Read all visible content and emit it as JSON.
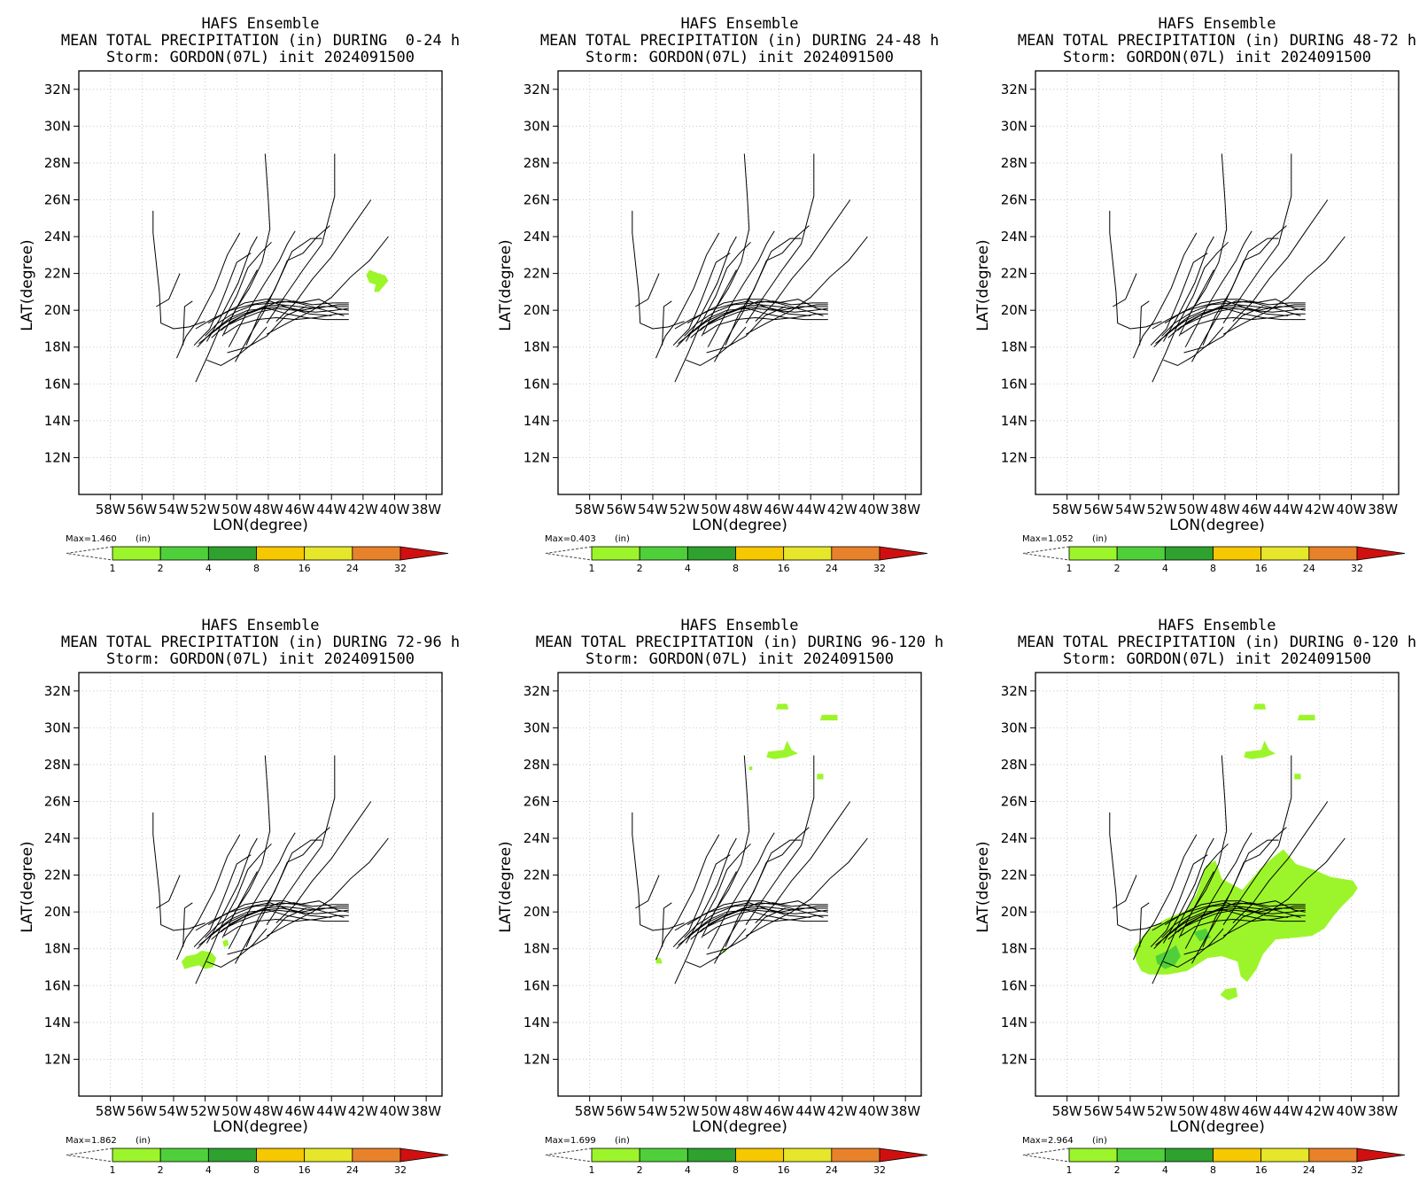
{
  "figure": {
    "colorbar": {
      "unit_label": "(in)",
      "levels": [
        "1",
        "2",
        "4",
        "8",
        "16",
        "24",
        "32"
      ],
      "colors": [
        "#9cf52a",
        "#4fd03a",
        "#2ea12e",
        "#1d7a1d",
        "#f5c800",
        "#e6e62a",
        "#e8822a",
        "#d01010"
      ]
    }
  },
  "chart_data": [
    {
      "type": "line",
      "title": "HAFS Ensemble",
      "subtitle": "MEAN TOTAL PRECIPITATION (in) DURING  0-24 h",
      "subtitle2": "Storm: GORDON(07L) init 2024091500",
      "xlabel": "LON(degree)",
      "ylabel": "LAT(degree)",
      "xlim": [
        -60,
        -37
      ],
      "ylim": [
        10,
        33
      ],
      "xticks": [
        -58,
        -56,
        -54,
        -52,
        -50,
        -48,
        -46,
        -44,
        -42,
        -40,
        -38
      ],
      "xtick_labels": [
        "58W",
        "56W",
        "54W",
        "52W",
        "50W",
        "48W",
        "46W",
        "44W",
        "42W",
        "40W",
        "38W"
      ],
      "yticks": [
        12,
        14,
        16,
        18,
        20,
        22,
        24,
        26,
        28,
        30,
        32
      ],
      "ytick_labels": [
        "12N",
        "14N",
        "16N",
        "18N",
        "20N",
        "22N",
        "24N",
        "26N",
        "28N",
        "30N",
        "32N"
      ],
      "grid": true,
      "max_label": "Max=1.460",
      "precip_areas": [
        {
          "level": 1,
          "points": [
            [
              -41.6,
              22.2
            ],
            [
              -41.0,
              22.0
            ],
            [
              -40.6,
              21.9
            ],
            [
              -40.4,
              21.6
            ],
            [
              -40.7,
              21.3
            ],
            [
              -41.0,
              21.0
            ],
            [
              -41.3,
              21.0
            ],
            [
              -41.2,
              21.4
            ],
            [
              -41.6,
              21.5
            ],
            [
              -41.8,
              21.9
            ]
          ]
        }
      ]
    },
    {
      "type": "line",
      "title": "HAFS Ensemble",
      "subtitle": "MEAN TOTAL PRECIPITATION (in) DURING 24-48 h",
      "subtitle2": "Storm: GORDON(07L) init 2024091500",
      "xlabel": "LON(degree)",
      "ylabel": "LAT(degree)",
      "xlim": [
        -60,
        -37
      ],
      "ylim": [
        10,
        33
      ],
      "xticks": [
        -58,
        -56,
        -54,
        -52,
        -50,
        -48,
        -46,
        -44,
        -42,
        -40,
        -38
      ],
      "xtick_labels": [
        "58W",
        "56W",
        "54W",
        "52W",
        "50W",
        "48W",
        "46W",
        "44W",
        "42W",
        "40W",
        "38W"
      ],
      "yticks": [
        12,
        14,
        16,
        18,
        20,
        22,
        24,
        26,
        28,
        30,
        32
      ],
      "ytick_labels": [
        "12N",
        "14N",
        "16N",
        "18N",
        "20N",
        "22N",
        "24N",
        "26N",
        "28N",
        "30N",
        "32N"
      ],
      "grid": true,
      "max_label": "Max=0.403",
      "precip_areas": []
    },
    {
      "type": "line",
      "title": "HAFS Ensemble",
      "subtitle": "MEAN TOTAL PRECIPITATION (in) DURING 48-72 h",
      "subtitle2": "Storm: GORDON(07L) init 2024091500",
      "xlabel": "LON(degree)",
      "ylabel": "LAT(degree)",
      "xlim": [
        -60,
        -37
      ],
      "ylim": [
        10,
        33
      ],
      "xticks": [
        -58,
        -56,
        -54,
        -52,
        -50,
        -48,
        -46,
        -44,
        -42,
        -40,
        -38
      ],
      "xtick_labels": [
        "58W",
        "56W",
        "54W",
        "52W",
        "50W",
        "48W",
        "46W",
        "44W",
        "42W",
        "40W",
        "38W"
      ],
      "yticks": [
        12,
        14,
        16,
        18,
        20,
        22,
        24,
        26,
        28,
        30,
        32
      ],
      "ytick_labels": [
        "12N",
        "14N",
        "16N",
        "18N",
        "20N",
        "22N",
        "24N",
        "26N",
        "28N",
        "30N",
        "32N"
      ],
      "grid": true,
      "max_label": "Max=1.052",
      "precip_areas": []
    },
    {
      "type": "line",
      "title": "HAFS Ensemble",
      "subtitle": "MEAN TOTAL PRECIPITATION (in) DURING 72-96 h",
      "subtitle2": "Storm: GORDON(07L) init 2024091500",
      "xlabel": "LON(degree)",
      "ylabel": "LAT(degree)",
      "xlim": [
        -60,
        -37
      ],
      "ylim": [
        10,
        33
      ],
      "xticks": [
        -58,
        -56,
        -54,
        -52,
        -50,
        -48,
        -46,
        -44,
        -42,
        -40,
        -38
      ],
      "xtick_labels": [
        "58W",
        "56W",
        "54W",
        "52W",
        "50W",
        "48W",
        "46W",
        "44W",
        "42W",
        "40W",
        "38W"
      ],
      "yticks": [
        12,
        14,
        16,
        18,
        20,
        22,
        24,
        26,
        28,
        30,
        32
      ],
      "ytick_labels": [
        "12N",
        "14N",
        "16N",
        "18N",
        "20N",
        "22N",
        "24N",
        "26N",
        "28N",
        "30N",
        "32N"
      ],
      "grid": true,
      "max_label": "Max=1.862",
      "precip_areas": [
        {
          "level": 1,
          "points": [
            [
              -53.2,
              17.6
            ],
            [
              -52.6,
              17.7
            ],
            [
              -52.2,
              17.9
            ],
            [
              -51.6,
              17.8
            ],
            [
              -51.3,
              17.5
            ],
            [
              -51.5,
              17.0
            ],
            [
              -52.0,
              16.9
            ],
            [
              -52.4,
              17.1
            ],
            [
              -52.9,
              17.0
            ],
            [
              -53.3,
              16.9
            ],
            [
              -53.5,
              17.3
            ]
          ]
        },
        {
          "level": 1,
          "points": [
            [
              -50.9,
              18.4
            ],
            [
              -50.6,
              18.5
            ],
            [
              -50.5,
              18.2
            ],
            [
              -50.8,
              18.1
            ]
          ]
        }
      ]
    },
    {
      "type": "line",
      "title": "HAFS Ensemble",
      "subtitle": "MEAN TOTAL PRECIPITATION (in) DURING 96-120 h",
      "subtitle2": "Storm: GORDON(07L) init 2024091500",
      "xlabel": "LON(degree)",
      "ylabel": "LAT(degree)",
      "xlim": [
        -60,
        -37
      ],
      "ylim": [
        10,
        33
      ],
      "xticks": [
        -58,
        -56,
        -54,
        -52,
        -50,
        -48,
        -46,
        -44,
        -42,
        -40,
        -38
      ],
      "xtick_labels": [
        "58W",
        "56W",
        "54W",
        "52W",
        "50W",
        "48W",
        "46W",
        "44W",
        "42W",
        "40W",
        "38W"
      ],
      "yticks": [
        12,
        14,
        16,
        18,
        20,
        22,
        24,
        26,
        28,
        30,
        32
      ],
      "ytick_labels": [
        "12N",
        "14N",
        "16N",
        "18N",
        "20N",
        "22N",
        "24N",
        "26N",
        "28N",
        "30N",
        "32N"
      ],
      "grid": true,
      "max_label": "Max=1.699",
      "precip_areas": [
        {
          "level": 1,
          "points": [
            [
              -46.1,
              31.3
            ],
            [
              -45.5,
              31.3
            ],
            [
              -45.4,
              31.0
            ],
            [
              -46.2,
              31.0
            ]
          ]
        },
        {
          "level": 1,
          "points": [
            [
              -43.3,
              30.7
            ],
            [
              -42.3,
              30.7
            ],
            [
              -42.3,
              30.4
            ],
            [
              -43.4,
              30.4
            ]
          ]
        },
        {
          "level": 1,
          "points": [
            [
              -46.7,
              28.7
            ],
            [
              -45.7,
              28.8
            ],
            [
              -45.5,
              29.3
            ],
            [
              -45.2,
              28.8
            ],
            [
              -44.8,
              28.6
            ],
            [
              -45.5,
              28.4
            ],
            [
              -46.3,
              28.3
            ],
            [
              -46.8,
              28.4
            ]
          ]
        },
        {
          "level": 1,
          "points": [
            [
              -43.6,
              27.5
            ],
            [
              -43.2,
              27.5
            ],
            [
              -43.2,
              27.2
            ],
            [
              -43.6,
              27.2
            ]
          ]
        },
        {
          "level": 1,
          "points": [
            [
              -53.8,
              17.5
            ],
            [
              -53.5,
              17.5
            ],
            [
              -53.4,
              17.2
            ],
            [
              -53.8,
              17.2
            ]
          ]
        },
        {
          "level": 1,
          "points": [
            [
              -47.9,
              27.9
            ],
            [
              -47.7,
              27.9
            ],
            [
              -47.7,
              27.7
            ],
            [
              -47.9,
              27.7
            ]
          ]
        },
        {
          "level": 1,
          "points": [
            [
              -49.6,
              18.0
            ],
            [
              -49.4,
              18.0
            ],
            [
              -49.4,
              17.8
            ],
            [
              -49.6,
              17.8
            ]
          ]
        }
      ]
    },
    {
      "type": "line",
      "title": "HAFS Ensemble",
      "subtitle": "MEAN TOTAL PRECIPITATION (in) DURING 0-120 h",
      "subtitle2": "Storm: GORDON(07L) init 2024091500",
      "xlabel": "LON(degree)",
      "ylabel": "LAT(degree)",
      "xlim": [
        -60,
        -37
      ],
      "ylim": [
        10,
        33
      ],
      "xticks": [
        -58,
        -56,
        -54,
        -52,
        -50,
        -48,
        -46,
        -44,
        -42,
        -40,
        -38
      ],
      "xtick_labels": [
        "58W",
        "56W",
        "54W",
        "52W",
        "50W",
        "48W",
        "46W",
        "44W",
        "42W",
        "40W",
        "38W"
      ],
      "yticks": [
        12,
        14,
        16,
        18,
        20,
        22,
        24,
        26,
        28,
        30,
        32
      ],
      "ytick_labels": [
        "12N",
        "14N",
        "16N",
        "18N",
        "20N",
        "22N",
        "24N",
        "26N",
        "28N",
        "30N",
        "32N"
      ],
      "grid": true,
      "max_label": "Max=2.964",
      "precip_areas": [
        {
          "level": 1,
          "points": [
            [
              -53.6,
              17.3
            ],
            [
              -53.8,
              18.0
            ],
            [
              -53.0,
              18.9
            ],
            [
              -51.8,
              19.6
            ],
            [
              -50.4,
              20.1
            ],
            [
              -49.8,
              21.0
            ],
            [
              -49.2,
              22.5
            ],
            [
              -48.6,
              22.8
            ],
            [
              -48.2,
              21.8
            ],
            [
              -46.9,
              21.2
            ],
            [
              -45.8,
              22.3
            ],
            [
              -44.9,
              23.0
            ],
            [
              -44.3,
              23.4
            ],
            [
              -43.5,
              22.6
            ],
            [
              -42.4,
              22.3
            ],
            [
              -41.3,
              21.9
            ],
            [
              -39.9,
              21.7
            ],
            [
              -39.6,
              21.3
            ],
            [
              -39.9,
              20.9
            ],
            [
              -40.6,
              20.3
            ],
            [
              -41.1,
              19.8
            ],
            [
              -41.7,
              19.1
            ],
            [
              -42.5,
              18.7
            ],
            [
              -43.6,
              18.6
            ],
            [
              -44.8,
              18.5
            ],
            [
              -45.6,
              17.7
            ],
            [
              -46.0,
              16.9
            ],
            [
              -46.6,
              16.2
            ],
            [
              -47.0,
              16.5
            ],
            [
              -47.2,
              17.3
            ],
            [
              -48.2,
              17.6
            ],
            [
              -49.1,
              17.5
            ],
            [
              -50.4,
              16.8
            ],
            [
              -51.6,
              16.6
            ],
            [
              -52.8,
              16.6
            ],
            [
              -53.3,
              16.8
            ]
          ]
        },
        {
          "level": 1,
          "points": [
            [
              -48.0,
              15.8
            ],
            [
              -47.3,
              15.9
            ],
            [
              -47.2,
              15.4
            ],
            [
              -47.8,
              15.2
            ],
            [
              -48.3,
              15.5
            ]
          ]
        },
        {
          "level": 1,
          "points": [
            [
              -46.1,
              31.3
            ],
            [
              -45.5,
              31.3
            ],
            [
              -45.4,
              31.0
            ],
            [
              -46.2,
              31.0
            ]
          ]
        },
        {
          "level": 1,
          "points": [
            [
              -43.3,
              30.7
            ],
            [
              -42.3,
              30.7
            ],
            [
              -42.3,
              30.4
            ],
            [
              -43.4,
              30.4
            ]
          ]
        },
        {
          "level": 1,
          "points": [
            [
              -46.7,
              28.7
            ],
            [
              -45.7,
              28.8
            ],
            [
              -45.5,
              29.3
            ],
            [
              -45.2,
              28.8
            ],
            [
              -44.8,
              28.6
            ],
            [
              -45.5,
              28.4
            ],
            [
              -46.3,
              28.3
            ],
            [
              -46.8,
              28.4
            ]
          ]
        },
        {
          "level": 1,
          "points": [
            [
              -43.6,
              27.5
            ],
            [
              -43.2,
              27.5
            ],
            [
              -43.2,
              27.2
            ],
            [
              -43.6,
              27.2
            ]
          ]
        },
        {
          "level": 2,
          "points": [
            [
              -52.4,
              17.6
            ],
            [
              -51.6,
              17.9
            ],
            [
              -51.1,
              18.2
            ],
            [
              -50.8,
              17.6
            ],
            [
              -51.2,
              17.1
            ],
            [
              -51.8,
              16.9
            ],
            [
              -52.3,
              17.2
            ]
          ]
        },
        {
          "level": 2,
          "points": [
            [
              -50.0,
              18.9
            ],
            [
              -49.2,
              19.1
            ],
            [
              -48.9,
              18.6
            ],
            [
              -49.6,
              18.4
            ]
          ]
        }
      ]
    }
  ]
}
